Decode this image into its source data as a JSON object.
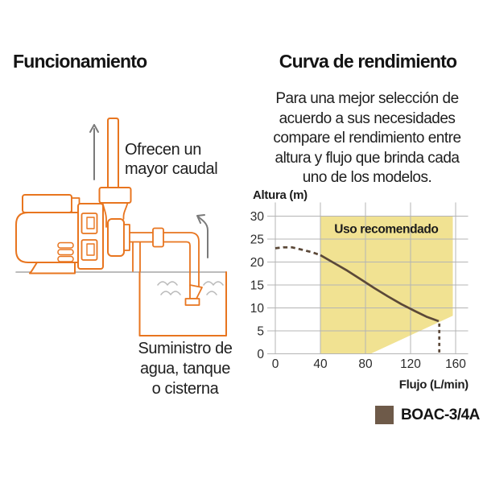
{
  "colors": {
    "accent_orange": "#e8751f",
    "region_yellow": "#f1e292",
    "curve_brown": "#5b4838",
    "legend_brown": "#6e5a49",
    "grid_gray": "#b4b4b4"
  },
  "left_section": {
    "title": "Funcionamiento",
    "flow_note_lines": [
      "Ofrecen un",
      "mayor caudal"
    ],
    "supply_note_lines": [
      "Suministro de",
      "agua, tanque",
      "o cisterna"
    ],
    "icons": {
      "flow_arrow": "up-arrow",
      "suction_arrow": "curved-up-arrow",
      "illustration": "centrifugal-pump-with-tank"
    }
  },
  "right_section": {
    "title": "Curva de rendimiento",
    "intro_lines": [
      "Para una mejor selección de",
      "acuerdo a sus necesidades",
      "compare el rendimiento entre",
      "altura y flujo que brinda cada",
      "uno de los modelos."
    ],
    "legend": {
      "label": "BOAC-3/4A",
      "swatch_color": "#6e5a49"
    }
  },
  "chart_data": {
    "type": "line",
    "title": "",
    "ylabel": "Altura (m)",
    "xlabel": "Flujo (L/min)",
    "xlim": [
      0,
      171
    ],
    "ylim": [
      0,
      33
    ],
    "xticks": [
      0,
      40,
      80,
      120,
      160
    ],
    "yticks": [
      0,
      5,
      10,
      15,
      20,
      25,
      30
    ],
    "grid": true,
    "legend_position": "bottom-right",
    "recommended_region": {
      "label": "Uso recomendado",
      "polygon": [
        [
          40,
          30
        ],
        [
          157.5,
          30
        ],
        [
          157.5,
          8.3
        ],
        [
          84.5,
          0
        ],
        [
          40,
          0
        ]
      ],
      "fill": "#f1e292",
      "label_pos": [
        98.5,
        27.2
      ]
    },
    "series": [
      {
        "name": "BOAC-3/4A",
        "color": "#5b4838",
        "dashed_lead_points": [
          [
            0,
            23
          ],
          [
            7,
            23.2
          ],
          [
            15,
            23.2
          ],
          [
            25,
            22.6
          ],
          [
            33,
            22.1
          ],
          [
            40,
            21.5
          ]
        ],
        "solid_points": [
          [
            40,
            21.5
          ],
          [
            52,
            19.8
          ],
          [
            64,
            18.1
          ],
          [
            76,
            16.2
          ],
          [
            88,
            14.3
          ],
          [
            100,
            12.5
          ],
          [
            112,
            10.8
          ],
          [
            124,
            9.3
          ],
          [
            134,
            8.1
          ],
          [
            145,
            7.1
          ]
        ],
        "dashed_drop_points": [
          [
            145.5,
            6.6
          ],
          [
            145.5,
            0
          ]
        ]
      }
    ]
  }
}
